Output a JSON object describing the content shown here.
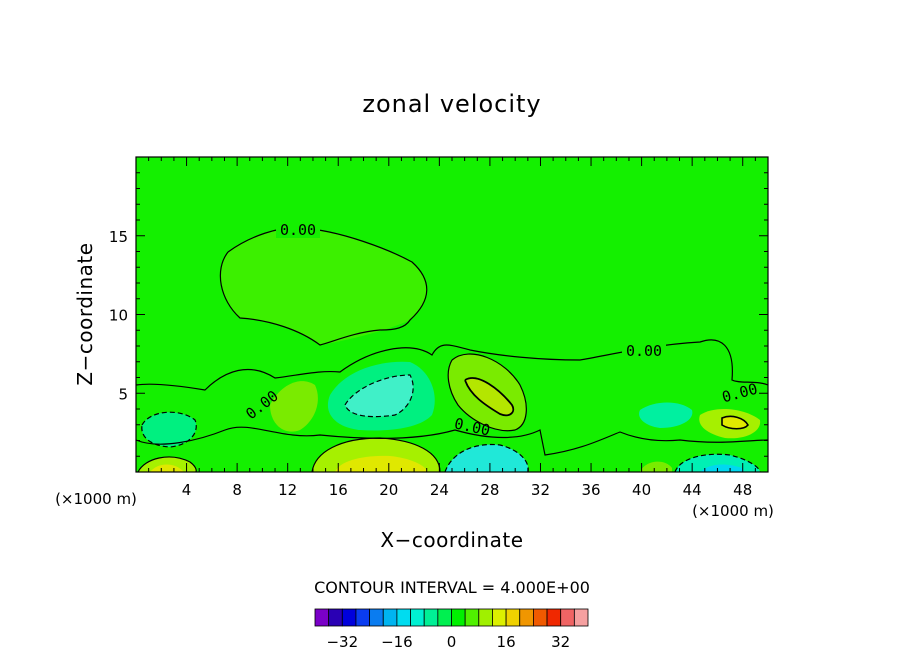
{
  "chart_data": {
    "type": "contour",
    "title": "zonal velocity",
    "xlabel": "X−coordinate",
    "ylabel": "Z−coordinate",
    "x_unit_label": "(×1000 m)",
    "xlim": [
      0,
      50
    ],
    "ylim": [
      0,
      20
    ],
    "x_ticks": [
      4,
      8,
      12,
      16,
      20,
      24,
      28,
      32,
      36,
      40,
      44,
      48
    ],
    "y_ticks": [
      5,
      10,
      15
    ],
    "contour_interval_text": "CONTOUR INTERVAL = 4.000E+00",
    "contour_labels": [
      "0.00",
      "0.00",
      "0.00",
      "0.00",
      "0.00"
    ],
    "colorbar": {
      "colors": [
        "#7a00c8",
        "#2a00b4",
        "#0000dc",
        "#0a3cf0",
        "#0a7cf0",
        "#00b4f0",
        "#00dcf0",
        "#00f0d2",
        "#00f096",
        "#00f050",
        "#00f000",
        "#50f000",
        "#a0f000",
        "#dcf000",
        "#f0d200",
        "#f09600",
        "#f05a00",
        "#f02800",
        "#f06464",
        "#f5a0a0"
      ],
      "tick_values": [
        -32,
        -16,
        0,
        16,
        32
      ],
      "tick_labels": [
        "−32",
        "−16",
        "0",
        "16",
        "32"
      ],
      "range": [
        -40,
        40
      ]
    },
    "grid": false,
    "fill_regions": [
      {
        "name": "plume-zero-region",
        "value": 2,
        "color": "#3cf000"
      },
      {
        "name": "blob-28-positive",
        "value": 4,
        "color": "#7aeb00"
      },
      {
        "name": "blob-28-core",
        "value": 8,
        "color": "#b4e600"
      },
      {
        "name": "blob-20-negative",
        "value": -4,
        "color": "#00f080"
      },
      {
        "name": "blob-20-core",
        "value": -8,
        "color": "#40f0c8"
      },
      {
        "name": "bottom-20-positive",
        "value": 6,
        "color": "#a6f000"
      },
      {
        "name": "bottom-20-core",
        "value": 12,
        "color": "#e0e800"
      },
      {
        "name": "bottom-28-negative",
        "value": -8,
        "color": "#20e8d8"
      },
      {
        "name": "left-blob-negative",
        "value": -4,
        "color": "#00f080"
      },
      {
        "name": "right-blob-negative",
        "value": -4,
        "color": "#00f0a0"
      },
      {
        "name": "right-47-positive",
        "value": 8,
        "color": "#a6f000"
      }
    ]
  }
}
